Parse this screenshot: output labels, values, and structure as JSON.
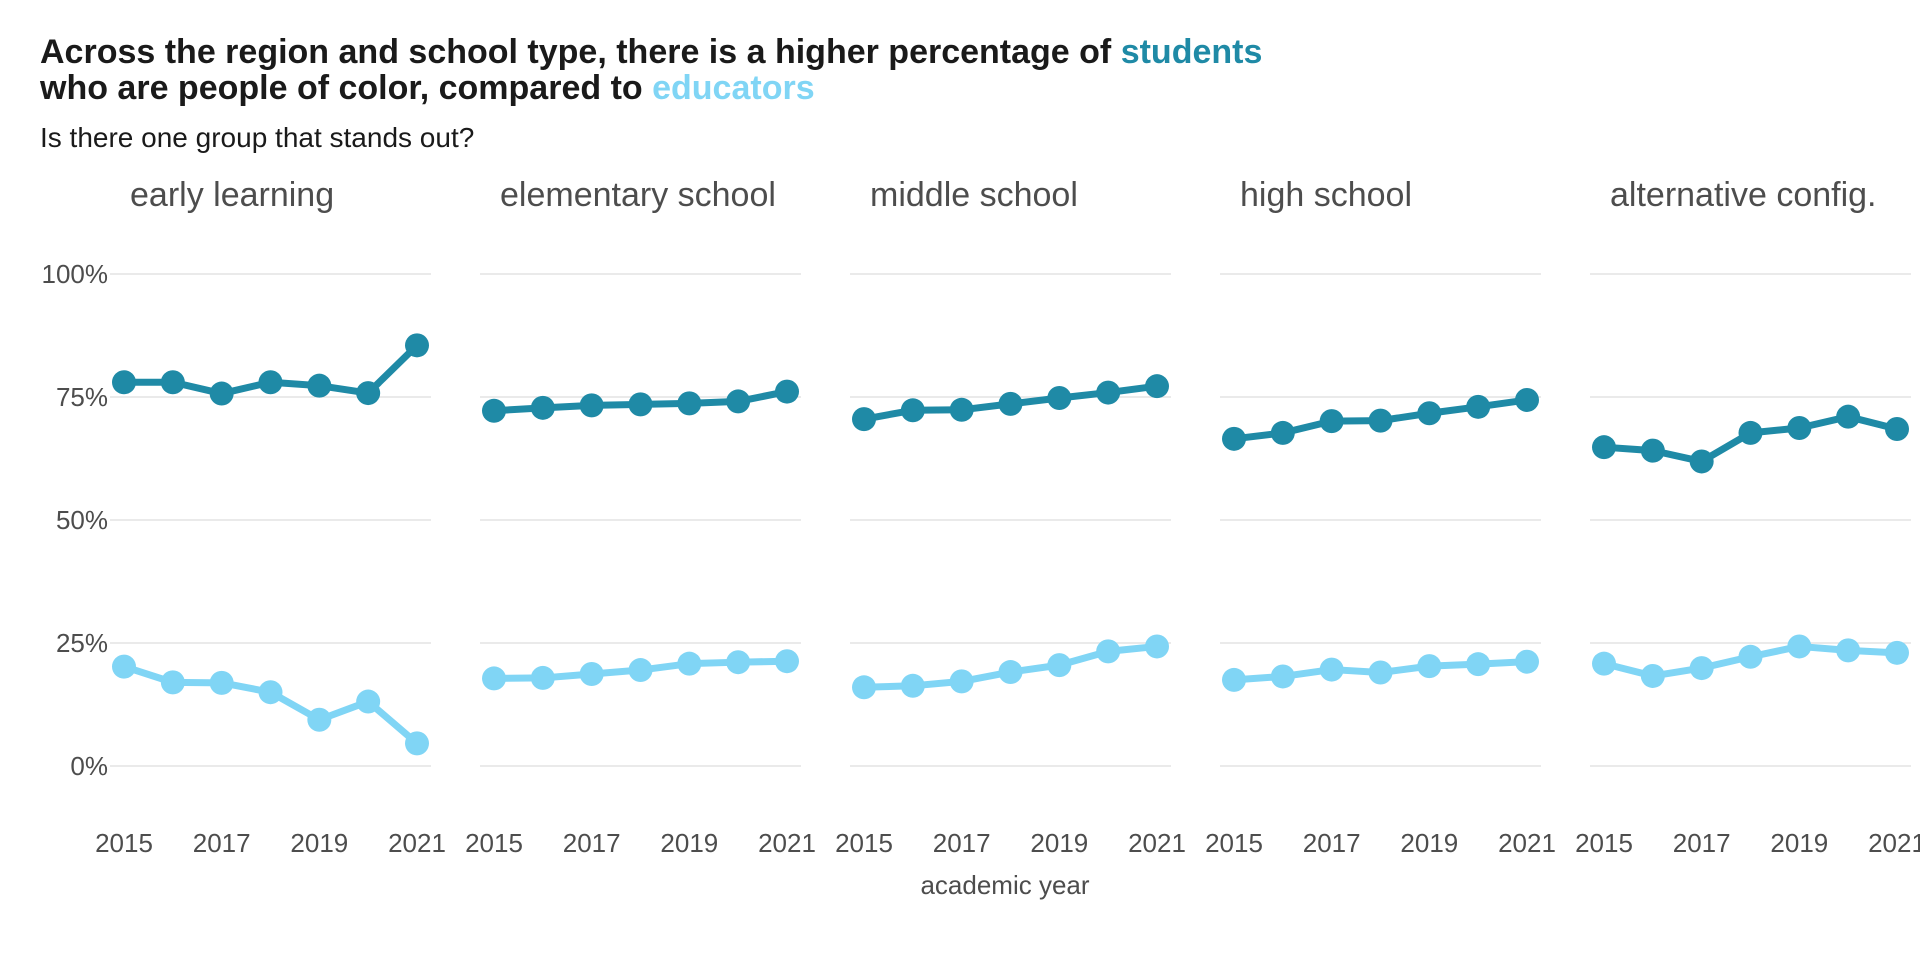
{
  "header": {
    "title_part1": "Across the region and school type, there is a higher percentage of ",
    "title_students": "students",
    "title_part2": "who are people of color, compared to ",
    "title_educators": "educators",
    "subtitle": "Is there one group that stands out?"
  },
  "colors": {
    "students": "#1f8aa6",
    "educators": "#80d5f5",
    "text": "#1a1a1a",
    "axis_text": "#4d4d4d",
    "grid": "#dedede"
  },
  "chart_data": {
    "type": "line",
    "xlabel": "academic year",
    "ylabel": "",
    "ylim": [
      0,
      100
    ],
    "y_ticks": [
      "0%",
      "25%",
      "50%",
      "75%",
      "100%"
    ],
    "y_tick_values": [
      0,
      25,
      50,
      75,
      100
    ],
    "x": [
      2015,
      2016,
      2017,
      2018,
      2019,
      2020,
      2021
    ],
    "x_ticks": [
      "2015",
      "2017",
      "2019",
      "2021"
    ],
    "x_tick_values": [
      2015,
      2017,
      2019,
      2021
    ],
    "grid": "horizontal",
    "panels": [
      {
        "name": "early learning",
        "series": [
          {
            "name": "students",
            "values": [
              78,
              78,
              75.7,
              78,
              77.3,
              75.8,
              85.5
            ]
          },
          {
            "name": "educators",
            "values": [
              20.2,
              17,
              16.9,
              15,
              9.4,
              13.1,
              4.6
            ]
          }
        ]
      },
      {
        "name": "elementary school",
        "series": [
          {
            "name": "students",
            "values": [
              72.2,
              72.8,
              73.3,
              73.5,
              73.7,
              74.1,
              76.1
            ]
          },
          {
            "name": "educators",
            "values": [
              17.8,
              17.9,
              18.7,
              19.5,
              20.8,
              21.1,
              21.3
            ]
          }
        ]
      },
      {
        "name": "middle school",
        "series": [
          {
            "name": "students",
            "values": [
              70.5,
              72.3,
              72.4,
              73.6,
              74.8,
              75.9,
              77.2
            ]
          },
          {
            "name": "educators",
            "values": [
              16,
              16.3,
              17.2,
              19.1,
              20.5,
              23.3,
              24.3
            ]
          }
        ]
      },
      {
        "name": "high school",
        "series": [
          {
            "name": "students",
            "values": [
              66.5,
              67.7,
              70.1,
              70.2,
              71.7,
              73,
              74.4
            ]
          },
          {
            "name": "educators",
            "values": [
              17.5,
              18.2,
              19.6,
              19,
              20.3,
              20.7,
              21.2
            ]
          }
        ]
      },
      {
        "name": "alternative config.",
        "series": [
          {
            "name": "students",
            "values": [
              64.8,
              64.1,
              61.9,
              67.7,
              68.7,
              71,
              68.5
            ]
          },
          {
            "name": "educators",
            "values": [
              20.8,
              18.3,
              19.9,
              22.2,
              24.3,
              23.5,
              23
            ]
          }
        ]
      }
    ]
  }
}
